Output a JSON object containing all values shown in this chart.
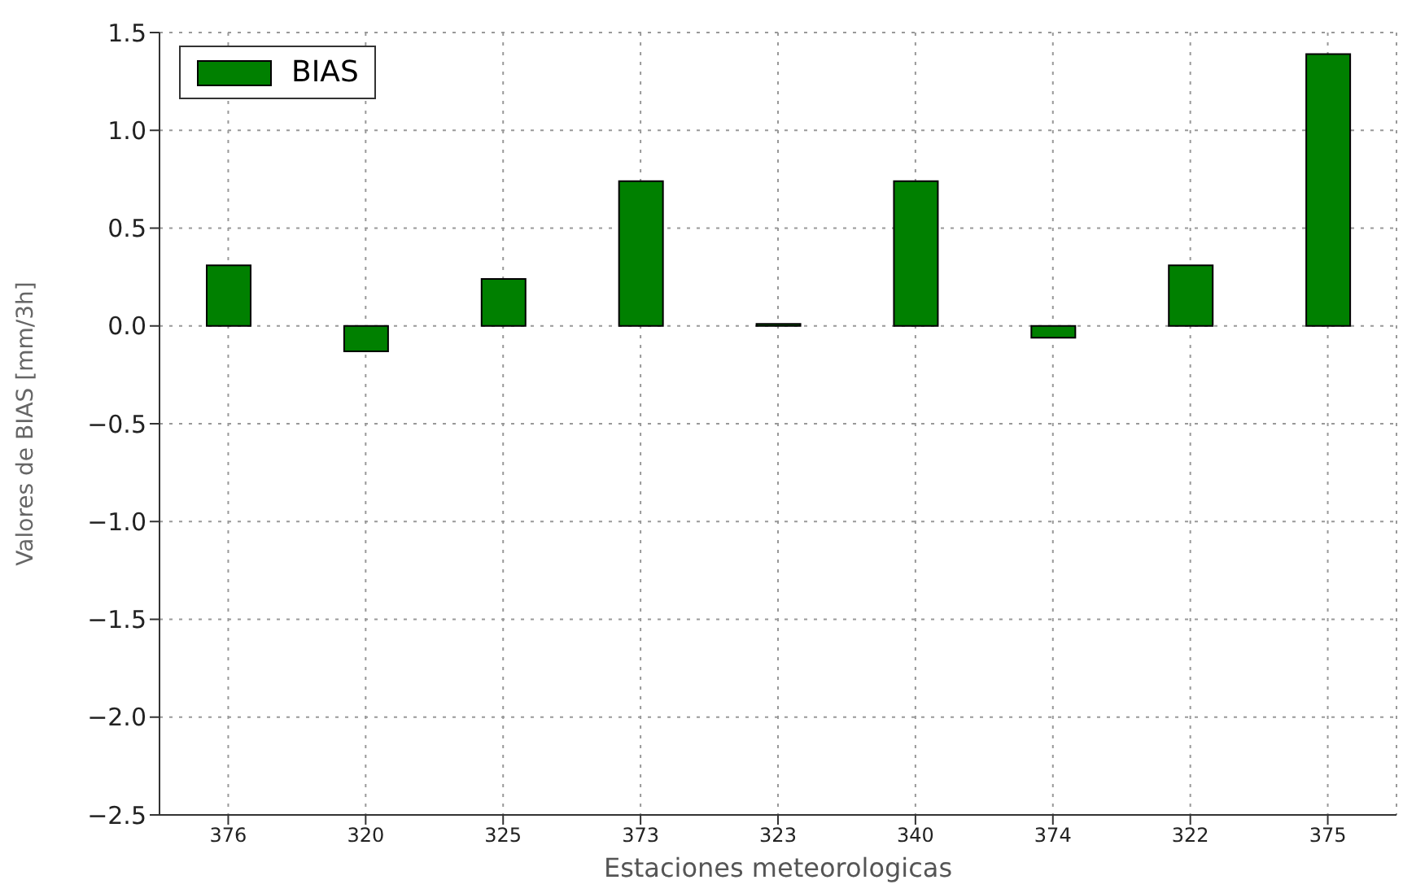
{
  "chart_data": {
    "type": "bar",
    "xlabel": "Estaciones meteorologicas",
    "ylabel": "Valores de BIAS [mm/3h]",
    "categories": [
      "376",
      "320",
      "325",
      "373",
      "323",
      "340",
      "374",
      "322",
      "375"
    ],
    "series": [
      {
        "name": "BIAS",
        "color": "#008000",
        "values": [
          0.31,
          -0.13,
          0.24,
          0.74,
          0.01,
          0.74,
          -0.06,
          0.31,
          1.39
        ]
      }
    ],
    "ylim": [
      -2.5,
      1.5
    ],
    "yticks": [
      {
        "value": -2.5,
        "label": "−2.5"
      },
      {
        "value": -2.0,
        "label": "−2.0"
      },
      {
        "value": -1.5,
        "label": "−1.5"
      },
      {
        "value": -1.0,
        "label": "−1.0"
      },
      {
        "value": -0.5,
        "label": "−0.5"
      },
      {
        "value": 0,
        "label": "0.0"
      },
      {
        "value": 0.5,
        "label": "0.5"
      },
      {
        "value": 1.0,
        "label": "1.0"
      },
      {
        "value": 1.5,
        "label": "1.5"
      }
    ],
    "grid": true,
    "legend": "top left"
  }
}
